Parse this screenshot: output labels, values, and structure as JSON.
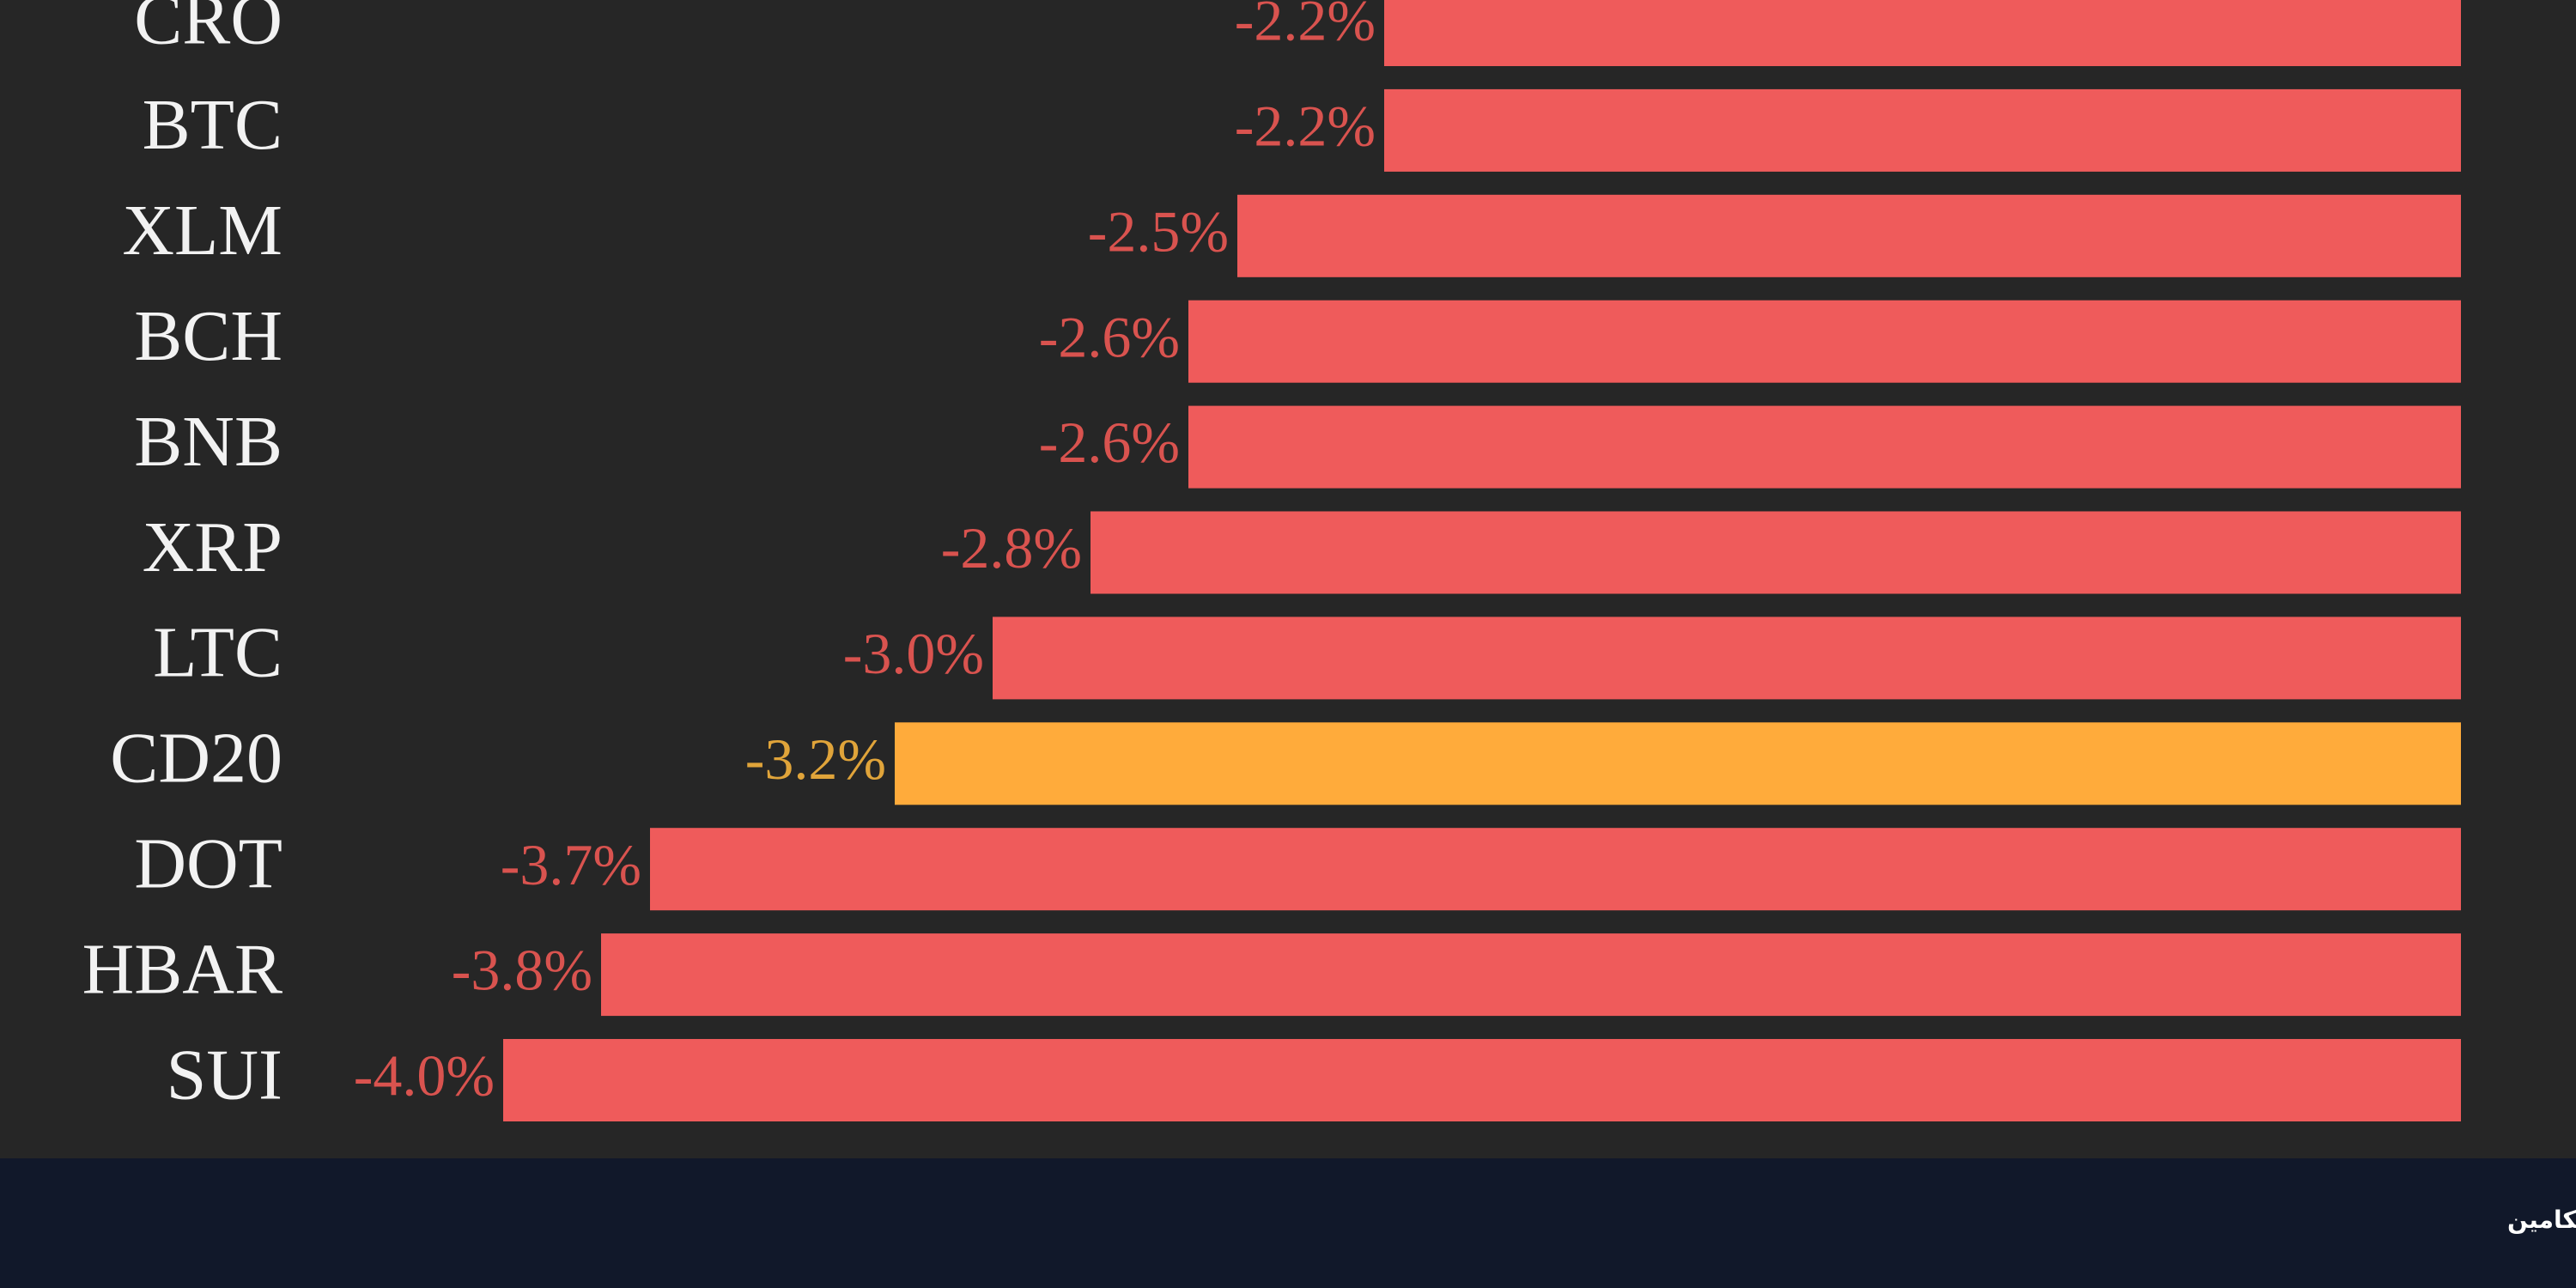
{
  "chart_data": {
    "type": "hbar",
    "categories": [
      "CRO",
      "BTC",
      "XLM",
      "BCH",
      "BNB",
      "XRP",
      "LTC",
      "CD20",
      "DOT",
      "HBAR",
      "SUI"
    ],
    "values": [
      -2.2,
      -2.2,
      -2.5,
      -2.6,
      -2.6,
      -2.8,
      -3.0,
      -3.2,
      -3.7,
      -3.8,
      -4.0
    ],
    "value_labels": [
      "-2.2%",
      "-2.2%",
      "-2.5%",
      "-2.6%",
      "-2.6%",
      "-2.8%",
      "-3.0%",
      "-3.2%",
      "-3.7%",
      "-3.8%",
      "-4.0%"
    ],
    "colors": [
      "#ef5b5b",
      "#ef5b5b",
      "#ef5b5b",
      "#ef5b5b",
      "#ef5b5b",
      "#ef5b5b",
      "#ef5b5b",
      "#ffab3b",
      "#ef5b5b",
      "#ef5b5b",
      "#ef5b5b"
    ],
    "value_label_colors": [
      "#d9534f",
      "#d9534f",
      "#d9534f",
      "#d9534f",
      "#d9534f",
      "#d9534f",
      "#d9534f",
      "#e0a43a",
      "#d9534f",
      "#d9534f",
      "#d9534f"
    ],
    "xlim": [
      -5,
      0
    ]
  },
  "watermark": "آتیکامین"
}
